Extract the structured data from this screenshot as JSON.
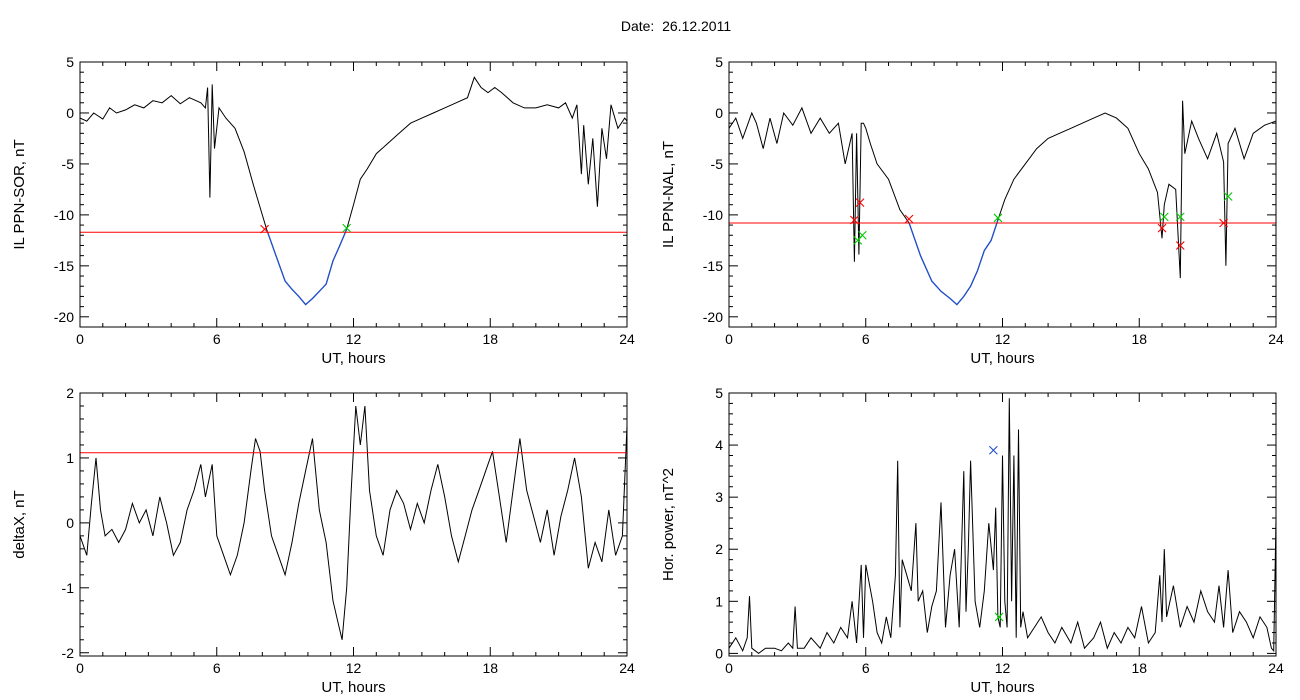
{
  "figure": {
    "title": "Date:  26.12.2011"
  },
  "chart_data": [
    {
      "type": "line",
      "panel": "top-left",
      "ylabel": "IL PPN-SOR, nT",
      "xlabel": "UT, hours",
      "xlim": [
        0,
        24
      ],
      "ylim": [
        -21,
        5
      ],
      "xticks": [
        0,
        6,
        12,
        18,
        24
      ],
      "yticks": [
        -20,
        -15,
        -10,
        -5,
        0,
        5
      ],
      "threshold": {
        "value": -11.7,
        "color": "#ff0000"
      },
      "highlight_range": [
        8.2,
        11.7
      ],
      "series": [
        {
          "color": "#000000",
          "highlight_color": "#1f4fd0",
          "x": [
            0,
            0.3,
            0.6,
            1,
            1.3,
            1.6,
            2,
            2.4,
            2.8,
            3.2,
            3.6,
            4,
            4.4,
            4.8,
            5.1,
            5.3,
            5.5,
            5.6,
            5.7,
            5.8,
            5.9,
            6.1,
            6.4,
            6.8,
            7.2,
            7.6,
            8,
            8.2,
            8.6,
            9,
            9.3,
            9.6,
            9.9,
            10.2,
            10.5,
            10.8,
            11.1,
            11.4,
            11.7,
            12,
            12.3,
            12.6,
            13,
            13.5,
            14,
            14.5,
            15,
            15.5,
            16,
            16.5,
            17,
            17.3,
            17.6,
            17.9,
            18.2,
            18.5,
            19,
            19.5,
            20,
            20.5,
            21,
            21.3,
            21.6,
            21.8,
            22,
            22.1,
            22.3,
            22.5,
            22.7,
            22.9,
            23.1,
            23.3,
            23.6,
            23.9,
            24
          ],
          "y": [
            -0.5,
            -0.8,
            0,
            -0.6,
            0.5,
            0,
            0.3,
            0.8,
            0.5,
            1.2,
            1,
            1.7,
            0.9,
            1.5,
            1.2,
            1,
            0.5,
            2.5,
            -8.3,
            2.8,
            -3.5,
            0.5,
            -0.5,
            -1.5,
            -3.8,
            -7,
            -10,
            -11.5,
            -14,
            -16.5,
            -17.3,
            -18,
            -18.8,
            -18.2,
            -17.5,
            -16.8,
            -14.5,
            -13,
            -11.4,
            -9,
            -6.5,
            -5.5,
            -4,
            -3,
            -2,
            -1,
            -0.5,
            0,
            0.5,
            1,
            1.5,
            3.5,
            2.5,
            2,
            2.5,
            2,
            1,
            0.5,
            0.5,
            0.8,
            0.5,
            1,
            -0.5,
            0.8,
            -6,
            -1.2,
            -7,
            -2.5,
            -9.2,
            -1.5,
            -4.5,
            0.8,
            -1.5,
            -0.5,
            -0.8
          ]
        }
      ],
      "markers": [
        {
          "x": 8.1,
          "y": -11.4,
          "color": "#ff0000"
        },
        {
          "x": 11.7,
          "y": -11.3,
          "color": "#00cc00"
        }
      ]
    },
    {
      "type": "line",
      "panel": "top-right",
      "ylabel": "IL PPN-NAL, nT",
      "xlabel": "UT, hours",
      "xlim": [
        0,
        24
      ],
      "ylim": [
        -21,
        5
      ],
      "xticks": [
        0,
        6,
        12,
        18,
        24
      ],
      "yticks": [
        -20,
        -15,
        -10,
        -5,
        0,
        5
      ],
      "threshold": {
        "value": -10.8,
        "color": "#ff0000"
      },
      "highlight_range": [
        7.9,
        11.8
      ],
      "series": [
        {
          "color": "#000000",
          "highlight_color": "#1f4fd0",
          "x": [
            0,
            0.3,
            0.6,
            1,
            1.2,
            1.5,
            1.8,
            2.1,
            2.4,
            2.8,
            3.2,
            3.6,
            4,
            4.4,
            4.8,
            5.1,
            5.4,
            5.5,
            5.6,
            5.7,
            5.8,
            5.9,
            6,
            6.2,
            6.5,
            7,
            7.5,
            7.9,
            8.4,
            8.9,
            9.3,
            9.7,
            10,
            10.3,
            10.6,
            10.9,
            11.2,
            11.5,
            11.8,
            12.1,
            12.5,
            13,
            13.5,
            14,
            14.5,
            15,
            15.5,
            16,
            16.5,
            17,
            17.5,
            18,
            18.4,
            18.8,
            19,
            19.1,
            19.3,
            19.6,
            19.8,
            19.9,
            20,
            20.3,
            20.6,
            21,
            21.4,
            21.7,
            21.8,
            21.9,
            22.2,
            22.6,
            23,
            23.5,
            24
          ],
          "y": [
            -1.5,
            -0.5,
            -2.5,
            0,
            -1,
            -3.5,
            -0.5,
            -3,
            0,
            -1.2,
            0.5,
            -2,
            -0.5,
            -2,
            -1,
            -5,
            -2,
            -14.6,
            -2,
            -13.9,
            -1,
            -1,
            -1.5,
            -3,
            -5,
            -6.5,
            -9.5,
            -10.8,
            -14,
            -16.5,
            -17.5,
            -18.2,
            -18.8,
            -18,
            -17,
            -15.5,
            -13.5,
            -12.5,
            -10.5,
            -8.5,
            -6.5,
            -5,
            -3.5,
            -2.5,
            -2,
            -1.5,
            -1,
            -0.5,
            0,
            -0.5,
            -1.5,
            -4,
            -5.5,
            -7.8,
            -12.3,
            -9,
            -7,
            -7.5,
            -16.2,
            1.2,
            -4,
            -0.8,
            -2.5,
            -4.5,
            -2,
            -4.8,
            -15,
            -3,
            -1.5,
            -4.5,
            -2,
            -1.2,
            -0.8
          ]
        }
      ],
      "markers": [
        {
          "x": 5.5,
          "y": -10.5,
          "color": "#ff0000"
        },
        {
          "x": 5.65,
          "y": -12.5,
          "color": "#00cc00"
        },
        {
          "x": 5.75,
          "y": -8.8,
          "color": "#ff0000"
        },
        {
          "x": 5.85,
          "y": -12,
          "color": "#00cc00"
        },
        {
          "x": 7.9,
          "y": -10.4,
          "color": "#ff0000"
        },
        {
          "x": 11.8,
          "y": -10.3,
          "color": "#00cc00"
        },
        {
          "x": 19,
          "y": -11.3,
          "color": "#ff0000"
        },
        {
          "x": 19.1,
          "y": -10.2,
          "color": "#00cc00"
        },
        {
          "x": 19.8,
          "y": -13,
          "color": "#ff0000"
        },
        {
          "x": 19.8,
          "y": -10.2,
          "color": "#00cc00"
        },
        {
          "x": 21.7,
          "y": -10.8,
          "color": "#ff0000"
        },
        {
          "x": 21.9,
          "y": -8.2,
          "color": "#00cc00"
        }
      ]
    },
    {
      "type": "line",
      "panel": "bottom-left",
      "ylabel": "deltaX, nT",
      "xlabel": "UT, hours",
      "xlim": [
        0,
        24
      ],
      "ylim": [
        -2.05,
        2
      ],
      "xticks": [
        0,
        6,
        12,
        18,
        24
      ],
      "yticks": [
        -2,
        -1,
        0,
        1,
        2
      ],
      "threshold": {
        "value": 1.08,
        "color": "#ff0000"
      },
      "series": [
        {
          "color": "#000000",
          "x": [
            0,
            0.3,
            0.5,
            0.7,
            0.9,
            1.1,
            1.4,
            1.7,
            2,
            2.3,
            2.6,
            2.9,
            3.2,
            3.5,
            3.8,
            4.1,
            4.4,
            4.7,
            5,
            5.3,
            5.5,
            5.8,
            6,
            6.3,
            6.6,
            6.9,
            7.2,
            7.5,
            7.7,
            7.9,
            8.1,
            8.4,
            8.7,
            9,
            9.3,
            9.6,
            9.9,
            10.2,
            10.5,
            10.8,
            11.1,
            11.3,
            11.5,
            11.7,
            11.9,
            12.1,
            12.3,
            12.5,
            12.7,
            13,
            13.3,
            13.6,
            13.9,
            14.2,
            14.5,
            14.8,
            15.1,
            15.4,
            15.7,
            16,
            16.3,
            16.6,
            16.9,
            17.2,
            17.5,
            17.8,
            18.1,
            18.4,
            18.7,
            19,
            19.3,
            19.6,
            19.9,
            20.2,
            20.5,
            20.8,
            21.1,
            21.4,
            21.7,
            22,
            22.3,
            22.6,
            22.9,
            23.2,
            23.5,
            23.8,
            24
          ],
          "y": [
            -0.2,
            -0.5,
            0.3,
            1,
            0.2,
            -0.2,
            -0.1,
            -0.3,
            -0.1,
            0.3,
            0,
            0.2,
            -0.2,
            0.4,
            0,
            -0.5,
            -0.3,
            0.2,
            0.5,
            0.9,
            0.4,
            0.9,
            -0.2,
            -0.5,
            -0.8,
            -0.5,
            0,
            0.8,
            1.3,
            1.1,
            0.5,
            -0.2,
            -0.5,
            -0.8,
            -0.3,
            0.3,
            0.8,
            1.3,
            0.2,
            -0.3,
            -1.2,
            -1.5,
            -1.8,
            -1,
            0.5,
            1.8,
            1.2,
            1.8,
            0.5,
            -0.2,
            -0.5,
            0.2,
            0.5,
            0.3,
            -0.1,
            0.3,
            0,
            0.5,
            0.9,
            0.4,
            -0.2,
            -0.6,
            -0.2,
            0.2,
            0.5,
            0.8,
            1.1,
            0.4,
            -0.3,
            0.5,
            1.3,
            0.5,
            0.1,
            -0.3,
            0.2,
            -0.5,
            0.1,
            0.5,
            1,
            0.4,
            -0.7,
            -0.3,
            -0.6,
            0.2,
            -0.5,
            -0.2,
            1.5
          ]
        }
      ]
    },
    {
      "type": "line",
      "panel": "bottom-right",
      "ylabel": "Hor. power, nT^2",
      "xlabel": "UT, hours",
      "xlim": [
        0,
        24
      ],
      "ylim": [
        -0.05,
        5
      ],
      "xticks": [
        0,
        6,
        12,
        18,
        24
      ],
      "yticks": [
        0,
        1,
        2,
        3,
        4,
        5
      ],
      "series": [
        {
          "color": "#000000",
          "x": [
            0,
            0.3,
            0.6,
            0.8,
            0.9,
            1,
            1.3,
            1.6,
            2,
            2.3,
            2.6,
            2.8,
            2.9,
            3,
            3.3,
            3.6,
            4,
            4.3,
            4.6,
            4.9,
            5.2,
            5.4,
            5.6,
            5.8,
            5.9,
            6,
            6.3,
            6.5,
            6.7,
            6.9,
            7.1,
            7.3,
            7.4,
            7.5,
            7.6,
            7.8,
            8,
            8.2,
            8.3,
            8.5,
            8.7,
            8.9,
            9.1,
            9.3,
            9.5,
            9.7,
            9.9,
            10.1,
            10.3,
            10.4,
            10.5,
            10.6,
            10.8,
            11,
            11.2,
            11.4,
            11.6,
            11.7,
            11.8,
            11.9,
            12,
            12.1,
            12.2,
            12.3,
            12.4,
            12.5,
            12.6,
            12.7,
            12.8,
            12.9,
            13.1,
            13.4,
            13.7,
            14,
            14.3,
            14.6,
            15,
            15.3,
            15.6,
            16,
            16.3,
            16.6,
            16.9,
            17.2,
            17.5,
            17.8,
            18.1,
            18.4,
            18.7,
            18.9,
            19,
            19.1,
            19.2,
            19.5,
            19.8,
            20.1,
            20.4,
            20.7,
            21,
            21.3,
            21.5,
            21.7,
            21.9,
            22.1,
            22.4,
            22.7,
            23,
            23.3,
            23.6,
            23.8,
            23.9,
            24
          ],
          "y": [
            0.1,
            0.3,
            0.05,
            0.3,
            1.1,
            0.1,
            0,
            0.1,
            0.1,
            0.05,
            0.2,
            0.1,
            0.9,
            0.1,
            0.1,
            0.3,
            0.1,
            0.4,
            0.2,
            0.5,
            0.3,
            1,
            0.2,
            1.7,
            0.3,
            1.7,
            1,
            0.4,
            0.2,
            0.7,
            0.3,
            1.5,
            3.7,
            0.5,
            1.8,
            1.5,
            1.2,
            2.5,
            1,
            1.2,
            0.4,
            0.9,
            1.2,
            2.9,
            0.5,
            1.5,
            2,
            0.5,
            3.5,
            0.8,
            2,
            3.7,
            1,
            0.5,
            1.2,
            2.5,
            1.6,
            2.8,
            0.7,
            0.5,
            3.8,
            1,
            0.5,
            4.9,
            1,
            3.8,
            0.3,
            4.3,
            0.5,
            0.8,
            0.3,
            0.5,
            0.7,
            0.4,
            0.2,
            0.5,
            0.2,
            0.6,
            0.1,
            0.3,
            0.6,
            0.1,
            0.4,
            0.2,
            0.5,
            0.3,
            0.9,
            0.2,
            0.4,
            1.5,
            0.6,
            2,
            0.7,
            1.3,
            0.5,
            0.9,
            0.6,
            1.2,
            0.8,
            0.6,
            1.3,
            0.5,
            1.6,
            0.4,
            0.8,
            0.6,
            0.3,
            0.7,
            0.5,
            0.1,
            0.05,
            2.6
          ]
        }
      ],
      "markers": [
        {
          "x": 11.6,
          "y": 3.9,
          "color": "#1f4fd0"
        },
        {
          "x": 11.85,
          "y": 0.7,
          "color": "#00cc00"
        }
      ]
    }
  ]
}
